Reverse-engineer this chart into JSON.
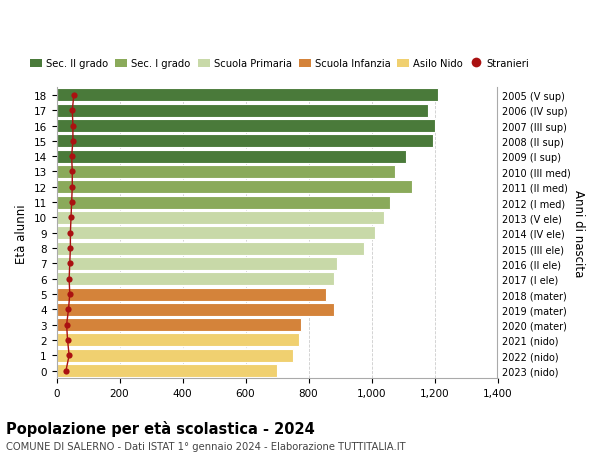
{
  "ages": [
    0,
    1,
    2,
    3,
    4,
    5,
    6,
    7,
    8,
    9,
    10,
    11,
    12,
    13,
    14,
    15,
    16,
    17,
    18
  ],
  "values": [
    700,
    750,
    770,
    775,
    880,
    855,
    880,
    890,
    975,
    1010,
    1040,
    1060,
    1130,
    1075,
    1110,
    1195,
    1200,
    1180,
    1210
  ],
  "stranieri": [
    30,
    40,
    35,
    32,
    38,
    42,
    40,
    42,
    44,
    44,
    46,
    48,
    50,
    50,
    48,
    52,
    52,
    50,
    55
  ],
  "right_labels": [
    "2023 (nido)",
    "2022 (nido)",
    "2021 (nido)",
    "2020 (mater)",
    "2019 (mater)",
    "2018 (mater)",
    "2017 (I ele)",
    "2016 (II ele)",
    "2015 (III ele)",
    "2014 (IV ele)",
    "2013 (V ele)",
    "2012 (I med)",
    "2011 (II med)",
    "2010 (III med)",
    "2009 (I sup)",
    "2008 (II sup)",
    "2007 (III sup)",
    "2006 (IV sup)",
    "2005 (V sup)"
  ],
  "bar_colors": [
    "#f0d070",
    "#f0d070",
    "#f0d070",
    "#d4833a",
    "#d4833a",
    "#d4833a",
    "#c8d9a8",
    "#c8d9a8",
    "#c8d9a8",
    "#c8d9a8",
    "#c8d9a8",
    "#8aaa5a",
    "#8aaa5a",
    "#8aaa5a",
    "#4a7a3a",
    "#4a7a3a",
    "#4a7a3a",
    "#4a7a3a",
    "#4a7a3a"
  ],
  "legend_labels": [
    "Sec. II grado",
    "Sec. I grado",
    "Scuola Primaria",
    "Scuola Infanzia",
    "Asilo Nido",
    "Stranieri"
  ],
  "legend_colors": [
    "#4a7a3a",
    "#8aaa5a",
    "#c8d9a8",
    "#d4833a",
    "#f0d070",
    "#aa1111"
  ],
  "ylabel": "Età alunni",
  "right_ylabel": "Anni di nascita",
  "title": "Popolazione per età scolastica - 2024",
  "subtitle": "COMUNE DI SALERNO - Dati ISTAT 1° gennaio 2024 - Elaborazione TUTTITALIA.IT",
  "xlim": [
    0,
    1400
  ],
  "xticks": [
    0,
    200,
    400,
    600,
    800,
    1000,
    1200,
    1400
  ],
  "stranieri_color": "#aa1111",
  "bar_height": 0.85,
  "background_color": "#ffffff",
  "grid_color": "#cccccc"
}
